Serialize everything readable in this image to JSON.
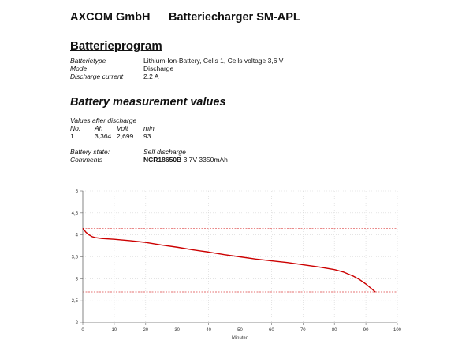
{
  "header": {
    "company": "AXCOM GmbH",
    "device": "Batteriecharger SM-APL"
  },
  "program": {
    "title": "Batterieprogram",
    "rows": [
      {
        "key": "Batterietype",
        "value": "Lithium-Ion-Battery, Cells 1, Cells voltage 3,6 V"
      },
      {
        "key": "Mode",
        "value": "Discharge"
      },
      {
        "key": "Discharge current",
        "value": "2,2 A"
      }
    ]
  },
  "measurement": {
    "title": "Battery measurement values",
    "values_label": "Values after discharge",
    "columns": [
      "No.",
      "Ah",
      "Volt",
      "min."
    ],
    "rows": [
      [
        "1.",
        "3,364",
        "2,699",
        "93"
      ]
    ],
    "state_label": "Battery state:",
    "state_value": "Self discharge",
    "comments_label": "Comments",
    "comments_bold": "NCR18650B",
    "comments_rest": " 3,7V 3350mAh"
  },
  "chart_data": {
    "type": "line",
    "title": "",
    "xlabel": "Minuten",
    "ylabel": "",
    "xlim": [
      0,
      100
    ],
    "ylim": [
      2,
      5
    ],
    "xticks": [
      0,
      10,
      20,
      30,
      40,
      50,
      60,
      70,
      80,
      90,
      100
    ],
    "yticks": [
      2,
      2.5,
      3,
      3.5,
      4,
      4.5,
      5
    ],
    "grid": true,
    "reference_lines": [
      4.15,
      2.7
    ],
    "series": [
      {
        "color": "#cc0000",
        "x": [
          0,
          1,
          2,
          3,
          4,
          6,
          8,
          10,
          15,
          20,
          25,
          30,
          35,
          40,
          45,
          50,
          55,
          60,
          65,
          70,
          75,
          80,
          83,
          86,
          88,
          90,
          91,
          92,
          93
        ],
        "y": [
          4.15,
          4.06,
          4.0,
          3.96,
          3.94,
          3.92,
          3.91,
          3.9,
          3.87,
          3.83,
          3.77,
          3.72,
          3.66,
          3.61,
          3.55,
          3.5,
          3.45,
          3.41,
          3.37,
          3.32,
          3.27,
          3.21,
          3.15,
          3.06,
          2.98,
          2.88,
          2.82,
          2.76,
          2.7
        ]
      }
    ]
  }
}
